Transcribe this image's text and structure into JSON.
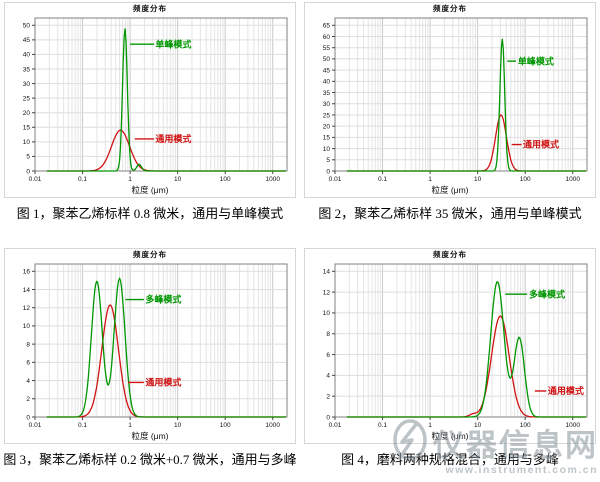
{
  "page": {
    "background": "#ffffff"
  },
  "watermark": {
    "title": "仪器信息网",
    "url": "www.instrument.com.cn",
    "logo": "bolt-in-ellipse",
    "color": "#7e8a93"
  },
  "colors": {
    "green_mode": "#009600",
    "red_mode": "#d01212",
    "grid_minor": "#e4e4e4",
    "grid_major": "#c9c9c9",
    "frame": "#808080"
  },
  "chart_data": [
    {
      "type": "line",
      "title": "频度分布",
      "xlabel": "粒度 (μm)",
      "caption": "图 1，聚苯乙烯标样 0.8 微米，通用与单峰模式",
      "x_scale": "log",
      "x_ticks": [
        "0.01",
        "0.1",
        "1",
        "10",
        "100",
        "1000"
      ],
      "xlim": [
        0.01,
        2000
      ],
      "ylim": [
        0,
        50
      ],
      "y_tick_step": 5,
      "grid": true,
      "legend_position": "inline-annotations",
      "series": [
        {
          "name": "单峰模式",
          "color": "#009600",
          "peak_points": [
            {
              "x": 0.78,
              "y": 49
            },
            {
              "x": 1.55,
              "y": 2.3
            }
          ],
          "components": [
            {
              "center": 0.78,
              "sigma_log": 0.05,
              "amp": 49
            },
            {
              "center": 1.55,
              "sigma_log": 0.05,
              "amp": 2.3
            }
          ]
        },
        {
          "name": "通用模式",
          "color": "#d01212",
          "peak_points": [
            {
              "x": 0.63,
              "y": 14
            }
          ],
          "components": [
            {
              "center": 0.63,
              "sigma_log": 0.19,
              "amp": 14
            }
          ]
        }
      ],
      "annotations": [
        {
          "text": "单峰模式",
          "color": "#009600",
          "y": 43.5,
          "line_from_x": 1.0,
          "line_to_x": 3.2,
          "text_x": 3.4
        },
        {
          "text": "通用模式",
          "color": "#d01212",
          "y": 11,
          "line_from_x": 1.25,
          "line_to_x": 3.2,
          "text_x": 3.4
        }
      ]
    },
    {
      "type": "line",
      "title": "频度分布",
      "xlabel": "粒度 (μm)",
      "caption": "图 2，聚苯乙烯标样 35 微米，通用与单峰模式",
      "x_scale": "log",
      "x_ticks": [
        "0.01",
        "0.1",
        "1",
        "10",
        "100",
        "1000"
      ],
      "xlim": [
        0.01,
        2000
      ],
      "ylim": [
        0,
        65
      ],
      "y_tick_step": 5,
      "grid": true,
      "legend_position": "inline-annotations",
      "series": [
        {
          "name": "单峰模式",
          "color": "#009600",
          "peak_points": [
            {
              "x": 33,
              "y": 59
            }
          ],
          "components": [
            {
              "center": 33,
              "sigma_log": 0.05,
              "amp": 59
            }
          ]
        },
        {
          "name": "通用模式",
          "color": "#d01212",
          "peak_points": [
            {
              "x": 31,
              "y": 25
            }
          ],
          "components": [
            {
              "center": 31,
              "sigma_log": 0.115,
              "amp": 25
            }
          ]
        }
      ],
      "annotations": [
        {
          "text": "单峰模式",
          "color": "#009600",
          "y": 49,
          "line_from_x": 42,
          "line_to_x": 64,
          "text_x": 70
        },
        {
          "text": "通用模式",
          "color": "#d01212",
          "y": 11.8,
          "line_from_x": 52,
          "line_to_x": 84,
          "text_x": 90
        }
      ]
    },
    {
      "type": "line",
      "title": "频度分布",
      "xlabel": "粒度 (μm)",
      "caption": "图 3，聚苯乙烯标样 0.2 微米+0.7 微米，通用与多峰",
      "x_scale": "log",
      "x_ticks": [
        "0.01",
        "0.1",
        "1",
        "10",
        "100",
        "1000"
      ],
      "xlim": [
        0.01,
        2000
      ],
      "ylim": [
        0,
        16
      ],
      "y_tick_step": 2,
      "grid": true,
      "legend_position": "inline-annotations",
      "series": [
        {
          "name": "多峰模式",
          "color": "#009600",
          "peak_points": [
            {
              "x": 0.2,
              "y": 14.9
            },
            {
              "x": 0.6,
              "y": 15.2
            },
            {
              "x": 0.35,
              "y": 3.6,
              "note": "valley"
            }
          ],
          "components": [
            {
              "center": 0.2,
              "sigma_log": 0.115,
              "amp": 14.9
            },
            {
              "center": 0.6,
              "sigma_log": 0.115,
              "amp": 15.2
            }
          ]
        },
        {
          "name": "通用模式",
          "color": "#d01212",
          "peak_points": [
            {
              "x": 0.38,
              "y": 12.3
            }
          ],
          "components": [
            {
              "center": 0.38,
              "sigma_log": 0.175,
              "amp": 12.3
            }
          ]
        }
      ],
      "annotations": [
        {
          "text": "多峰模式",
          "color": "#009600",
          "y": 12.9,
          "line_from_x": 0.8,
          "line_to_x": 1.95,
          "text_x": 2.1
        },
        {
          "text": "通用模式",
          "color": "#d01212",
          "y": 3.8,
          "line_from_x": 0.9,
          "line_to_x": 1.95,
          "text_x": 2.1
        }
      ]
    },
    {
      "type": "line",
      "title": "频度分布",
      "xlabel": "粒度 (μm)",
      "caption": "图 4，磨料两种规格混合，通用与多峰",
      "x_scale": "log",
      "x_ticks": [
        "0.01",
        "0.1",
        "1",
        "10",
        "100",
        "1000"
      ],
      "xlim": [
        0.01,
        2000
      ],
      "ylim": [
        0,
        14
      ],
      "y_tick_step": 2,
      "grid": true,
      "legend_position": "inline-annotations",
      "series": [
        {
          "name": "多峰模式",
          "color": "#009600",
          "peak_points": [
            {
              "x": 26,
              "y": 13.0
            },
            {
              "x": 75,
              "y": 7.6
            },
            {
              "x": 45,
              "y": 4.0,
              "note": "valley"
            }
          ],
          "components": [
            {
              "center": 26,
              "sigma_log": 0.14,
              "amp": 13.0
            },
            {
              "center": 75,
              "sigma_log": 0.11,
              "amp": 7.6
            }
          ]
        },
        {
          "name": "通用模式",
          "color": "#d01212",
          "peak_points": [
            {
              "x": 30,
              "y": 9.7
            }
          ],
          "components": [
            {
              "center": 30,
              "sigma_log": 0.185,
              "amp": 9.7
            },
            {
              "center": 8,
              "sigma_log": 0.08,
              "amp": 0.25
            }
          ]
        }
      ],
      "annotations": [
        {
          "text": "多峰模式",
          "color": "#009600",
          "y": 11.8,
          "line_from_x": 38,
          "line_to_x": 110,
          "text_x": 120
        },
        {
          "text": "通用模式",
          "color": "#d01212",
          "y": 2.5,
          "line_from_x": 160,
          "line_to_x": 278,
          "text_x": 300
        }
      ]
    }
  ]
}
